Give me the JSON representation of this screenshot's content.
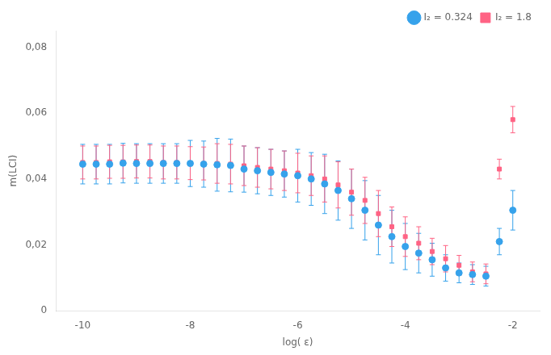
{
  "chart_data": {
    "type": "scatter",
    "xlabel": "log( ε)",
    "ylabel": "m(LCI)",
    "xlim": [
      -10.5,
      -1.5
    ],
    "ylim": [
      0,
      0.085
    ],
    "xticks": [
      -10,
      -8,
      -6,
      -4,
      -2
    ],
    "yticks": [
      0,
      {
        "value": 0.02,
        "label": "0,02"
      },
      {
        "value": 0.04,
        "label": "0,04"
      },
      {
        "value": 0.06,
        "label": "0,06"
      },
      {
        "value": 0.08,
        "label": "0,08"
      }
    ],
    "grid": false,
    "legend": "upper right",
    "x": [
      -10.0,
      -9.75,
      -9.5,
      -9.25,
      -9.0,
      -8.75,
      -8.5,
      -8.25,
      -8.0,
      -7.75,
      -7.5,
      -7.25,
      -7.0,
      -6.75,
      -6.5,
      -6.25,
      -6.0,
      -5.75,
      -5.5,
      -5.25,
      -5.0,
      -4.75,
      -4.5,
      -4.25,
      -4.0,
      -3.75,
      -3.5,
      -3.25,
      -3.0,
      -2.75,
      -2.5,
      -2.25,
      -2.0
    ],
    "series": [
      {
        "name": "I₂ = 0.324",
        "marker": "circle",
        "values": [
          0.0445,
          0.0445,
          0.0445,
          0.0448,
          0.0447,
          0.0447,
          0.0447,
          0.0447,
          0.0447,
          0.0445,
          0.0443,
          0.0441,
          0.043,
          0.0425,
          0.042,
          0.0415,
          0.041,
          0.04,
          0.0385,
          0.0365,
          0.034,
          0.0305,
          0.026,
          0.0225,
          0.0195,
          0.0175,
          0.0155,
          0.013,
          0.0115,
          0.011,
          0.0105,
          0.021,
          0.0305
        ],
        "yerr": [
          0.006,
          0.006,
          0.006,
          0.006,
          0.006,
          0.006,
          0.006,
          0.006,
          0.007,
          0.007,
          0.008,
          0.008,
          0.007,
          0.007,
          0.007,
          0.007,
          0.008,
          0.008,
          0.009,
          0.009,
          0.009,
          0.009,
          0.009,
          0.008,
          0.007,
          0.006,
          0.005,
          0.004,
          0.003,
          0.003,
          0.003,
          0.004,
          0.006
        ]
      },
      {
        "name": "I₂ = 1.8",
        "marker": "square",
        "values": [
          0.045,
          0.045,
          0.0452,
          0.0452,
          0.0453,
          0.0453,
          0.045,
          0.045,
          0.0448,
          0.0447,
          0.0447,
          0.0445,
          0.044,
          0.0435,
          0.043,
          0.0425,
          0.0418,
          0.041,
          0.04,
          0.0382,
          0.036,
          0.0335,
          0.0295,
          0.0255,
          0.0225,
          0.0205,
          0.018,
          0.0158,
          0.0138,
          0.0118,
          0.0112,
          0.043,
          0.058
        ],
        "yerr": [
          0.005,
          0.005,
          0.005,
          0.005,
          0.005,
          0.005,
          0.005,
          0.005,
          0.005,
          0.005,
          0.006,
          0.006,
          0.006,
          0.006,
          0.006,
          0.006,
          0.006,
          0.006,
          0.007,
          0.007,
          0.007,
          0.007,
          0.007,
          0.006,
          0.006,
          0.005,
          0.004,
          0.004,
          0.003,
          0.003,
          0.003,
          0.003,
          0.004
        ]
      }
    ]
  }
}
